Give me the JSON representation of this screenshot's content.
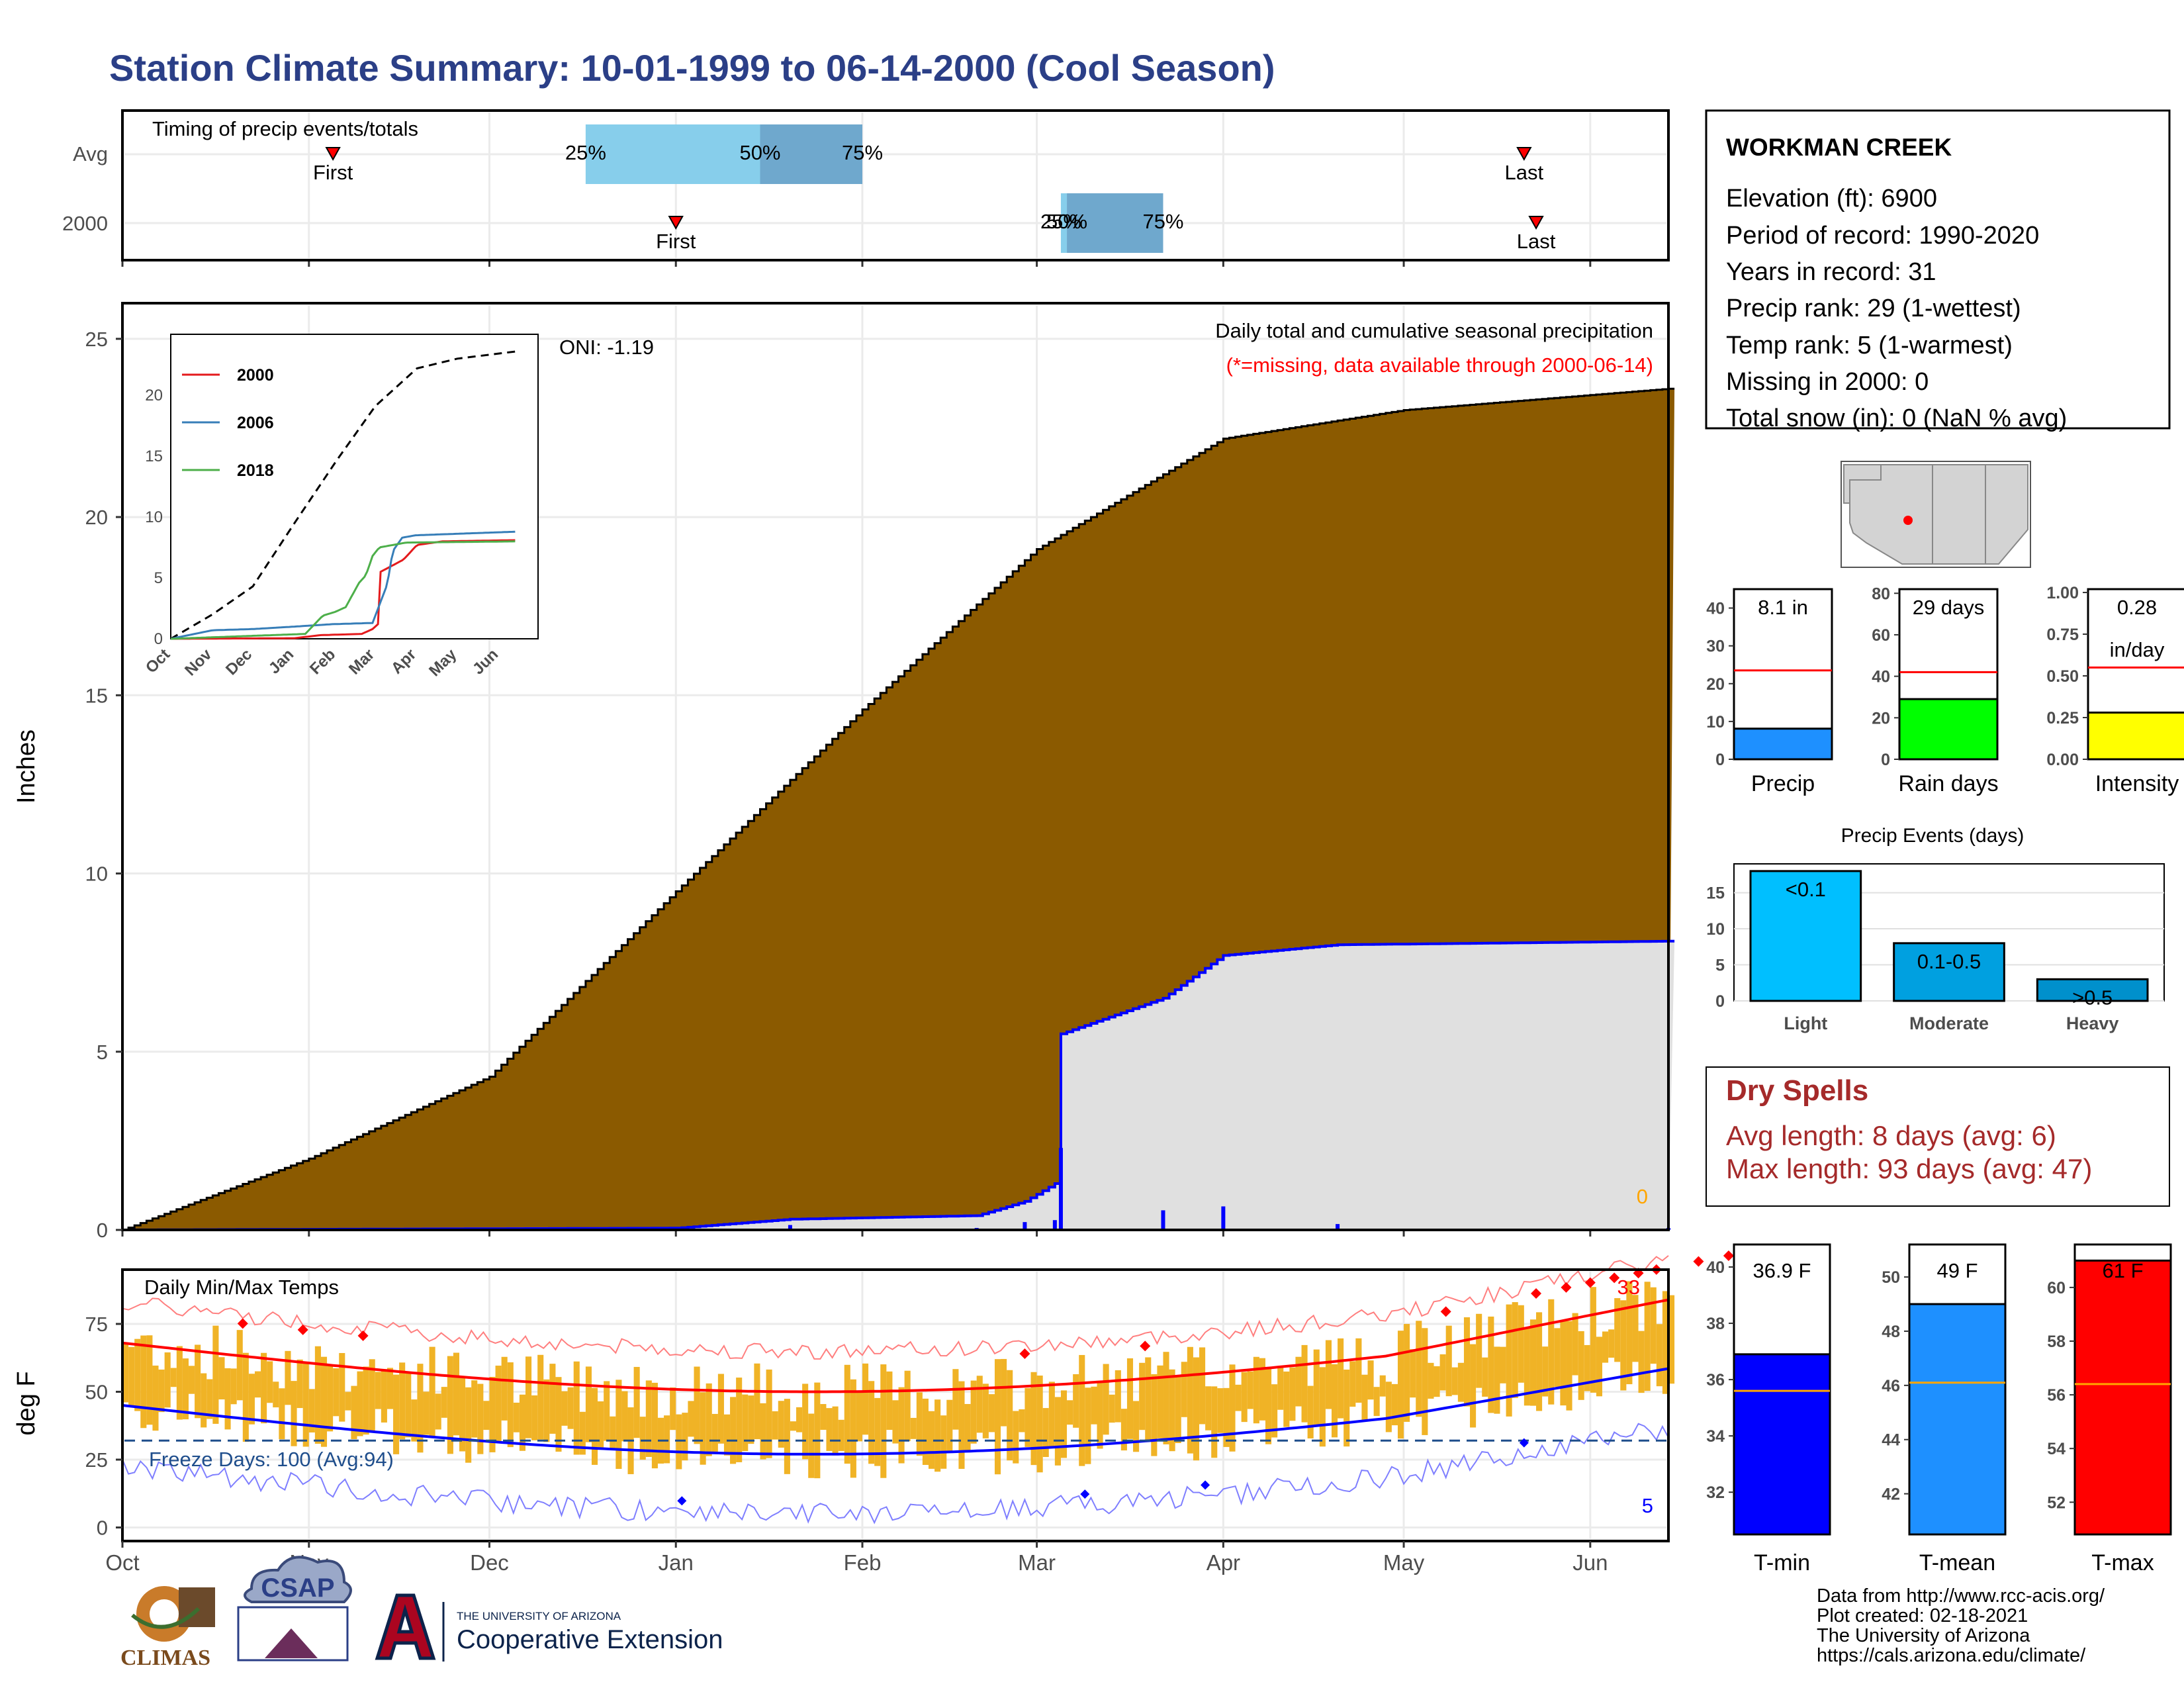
{
  "title": "Station Climate Summary: 10-01-1999 to 06-14-2000 (Cool Season)",
  "timing": {
    "label": "Timing of precip events/totals",
    "rows": [
      "Avg",
      "2000"
    ],
    "first_label": "First",
    "last_label": "Last",
    "q25": "25%",
    "q50": "50%",
    "q75": "75%",
    "avg": {
      "first": "1999-11-05",
      "last": "2000-05-21",
      "p25": "1999-12-17",
      "p50": "2000-01-15",
      "p75": "2000-02-01"
    },
    "y2000": {
      "first": "2000-01-01",
      "last": "2000-05-23",
      "p25": "2000-03-05",
      "p50": "2000-03-06",
      "p75": "2000-03-22"
    }
  },
  "precip_panel": {
    "ylabel": "Inches",
    "oni": "ONI: -1.19",
    "desc": "Daily total and cumulative seasonal precipitation",
    "missing_note": "(*=missing, data available through 2000-06-14)",
    "missing_count": "0",
    "ylim": [
      0,
      26
    ],
    "yticks": [
      "0",
      "5",
      "10",
      "15",
      "20",
      "25"
    ]
  },
  "inset": {
    "years": [
      "2000",
      "2006",
      "2018"
    ],
    "months": [
      "Oct",
      "Nov",
      "Dec",
      "Jan",
      "Feb",
      "Mar",
      "Apr",
      "May",
      "Jun"
    ],
    "yticks": [
      "0",
      "5",
      "10",
      "15",
      "20"
    ],
    "colors": {
      "2000": "#e41a1c",
      "2006": "#377eb8",
      "2018": "#4daf4a"
    }
  },
  "temp_panel": {
    "ylabel": "deg F",
    "label": "Daily Min/Max Temps",
    "freeze": "Freeze Days: 100 (Avg:94)",
    "max_count": "33",
    "min_count": "5",
    "yticks": [
      "0",
      "25",
      "50",
      "75"
    ],
    "ylim": [
      -5,
      95
    ]
  },
  "months_axis": [
    "Oct",
    "Nov",
    "Dec",
    "Jan",
    "Feb",
    "Mar",
    "Apr",
    "May",
    "Jun"
  ],
  "station": {
    "name": "WORKMAN CREEK",
    "lines": [
      "Elevation (ft): 6900",
      "Period of record: 1990-2020",
      "Years in record: 31",
      "Precip rank: 29 (1-wettest)",
      "Temp rank: 5 (1-warmest)",
      "Missing in 2000: 0",
      "Total snow (in): 0 (NaN % avg)"
    ]
  },
  "small_bars": [
    {
      "label": "Precip",
      "value_text": "8.1 in",
      "value": 8.1,
      "avg": 23.5,
      "ymax": 45,
      "ticks": [
        "0",
        "10",
        "20",
        "30",
        "40"
      ],
      "tickvals": [
        0,
        10,
        20,
        30,
        40
      ],
      "color": "#1e90ff"
    },
    {
      "label": "Rain days",
      "value_text": "29 days",
      "value": 29,
      "avg": 42,
      "ymax": 82,
      "ticks": [
        "0",
        "20",
        "40",
        "60",
        "80"
      ],
      "tickvals": [
        0,
        20,
        40,
        60,
        80
      ],
      "color": "#00ff00"
    },
    {
      "label": "Intensity",
      "value_text": "0.28",
      "value_text2": "in/day",
      "value": 0.28,
      "avg": 0.55,
      "ymax": 1.02,
      "ticks": [
        "0.00",
        "0.25",
        "0.50",
        "0.75",
        "1.00"
      ],
      "tickvals": [
        0,
        0.25,
        0.5,
        0.75,
        1.0
      ],
      "color": "#ffff00"
    }
  ],
  "events": {
    "title": "Precip Events (days)",
    "categories": [
      "Light",
      "Moderate",
      "Heavy"
    ],
    "labels": [
      "<0.1",
      "0.1-0.5",
      ">0.5"
    ],
    "values": [
      18,
      8,
      3
    ],
    "ticks": [
      "0",
      "5",
      "10",
      "15"
    ],
    "colors": [
      "#00bfff",
      "#00a0e0",
      "#0090cc"
    ]
  },
  "dry_spells": {
    "title": "Dry Spells",
    "avg": "Avg length: 8 days (avg: 6)",
    "max": "Max length: 93 days (avg: 47)"
  },
  "temp_bars": [
    {
      "label": "T-min",
      "value_text": "36.9 F",
      "value": 36.9,
      "avg": 35.6,
      "ymin": 30.5,
      "ymax": 40.8,
      "ticks": [
        "32",
        "34",
        "36",
        "38",
        "40"
      ],
      "tickvals": [
        32,
        34,
        36,
        38,
        40
      ],
      "color": "#0000ff"
    },
    {
      "label": "T-mean",
      "value_text": "49 F",
      "value": 49,
      "avg": 46.1,
      "ymin": 40.5,
      "ymax": 51.2,
      "ticks": [
        "42",
        "44",
        "46",
        "48",
        "50"
      ],
      "tickvals": [
        42,
        44,
        46,
        48,
        50
      ],
      "color": "#1e90ff"
    },
    {
      "label": "T-max",
      "value_text": "61 F",
      "value": 61,
      "avg": 56.4,
      "ymin": 50.8,
      "ymax": 61.6,
      "ticks": [
        "52",
        "54",
        "56",
        "58",
        "60"
      ],
      "tickvals": [
        52,
        54,
        56,
        58,
        60
      ],
      "color": "#ff0000"
    }
  ],
  "footer": {
    "lines": [
      "Data from http://www.rcc-acis.org/",
      "Plot created: 02-18-2021",
      "The University of Arizona",
      "https://cals.arizona.edu/climate/"
    ],
    "logo_climas": "CLIMAS",
    "logo_csap": "CSAP",
    "logo_ua_top": "THE UNIVERSITY OF ARIZONA",
    "logo_ua_bottom": "Cooperative Extension"
  },
  "chart_data": {
    "type": "area",
    "x_start": "1999-10-01",
    "x_end": "2000-06-14",
    "series": [
      {
        "name": "Avg",
        "x": [
          "1999-10-01",
          "1999-11-01",
          "1999-12-01",
          "2000-01-01",
          "2000-02-01",
          "2000-03-01",
          "2000-04-01",
          "2000-05-01",
          "2000-06-14"
        ],
        "values": [
          0,
          2.0,
          4.3,
          9.5,
          14.6,
          19.1,
          22.2,
          23.0,
          23.6
        ]
      },
      {
        "name": "2000",
        "x": [
          "1999-10-01",
          "2000-01-01",
          "2000-01-20",
          "2000-02-20",
          "2000-02-28",
          "2000-03-04",
          "2000-03-05",
          "2000-03-22",
          "2000-04-01",
          "2000-04-20",
          "2000-06-14"
        ],
        "values": [
          0,
          0.05,
          0.3,
          0.4,
          0.8,
          1.3,
          5.5,
          6.5,
          7.7,
          8.0,
          8.1
        ]
      }
    ],
    "ylim": [
      0,
      26
    ]
  }
}
